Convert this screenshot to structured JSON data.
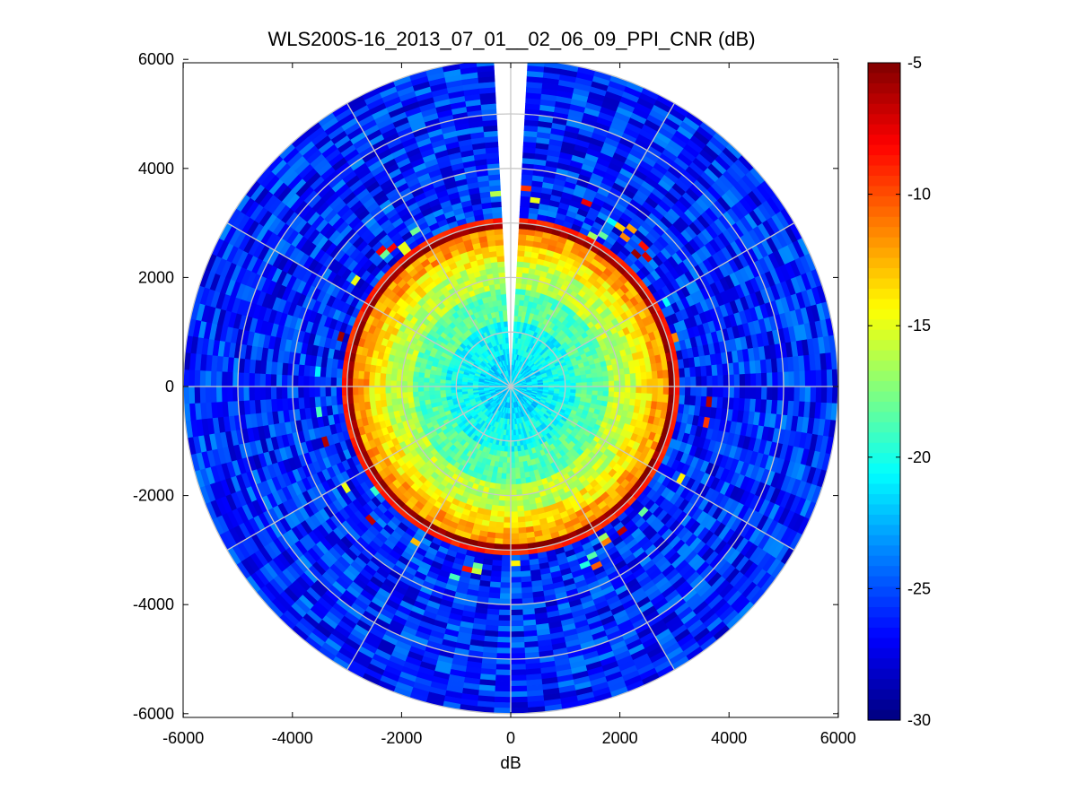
{
  "chart_data": {
    "type": "heatmap",
    "subtype": "polar PPI scan",
    "title": "WLS200S-16_2013_07_01__02_06_09_PPI_CNR (dB)",
    "xlabel": "dB",
    "ylabel": "",
    "xlim": [
      -6000,
      6000
    ],
    "ylim": [
      -6000,
      6000
    ],
    "x_ticks": [
      "-6000",
      "-4000",
      "-2000",
      "0",
      "2000",
      "4000",
      "6000"
    ],
    "y_ticks": [
      "6000",
      "4000",
      "2000",
      "0",
      "-2000",
      "-4000",
      "-6000"
    ],
    "grid": true,
    "polar_grid": {
      "ring_radii": [
        1000,
        2000,
        3000,
        4000,
        5000,
        6000
      ],
      "spoke_angles_deg": [
        0,
        30,
        60,
        90,
        120,
        150,
        180,
        210,
        240,
        270,
        300,
        330
      ]
    },
    "max_range": 6000,
    "missing_sector_azimuth_deg": [
      356,
      4
    ],
    "colorbar": {
      "colormap": "jet",
      "clim": [
        -30,
        -5
      ],
      "ticks": [
        "-5",
        "-10",
        "-15",
        "-20",
        "-25",
        "-30"
      ]
    },
    "range_profile": [
      {
        "r_min": 0,
        "r_max": 600,
        "cnr": -21.5
      },
      {
        "r_min": 600,
        "r_max": 1200,
        "cnr": -20.5
      },
      {
        "r_min": 1200,
        "r_max": 1800,
        "cnr": -18.5
      },
      {
        "r_min": 1800,
        "r_max": 2300,
        "cnr": -16
      },
      {
        "r_min": 2300,
        "r_max": 2650,
        "cnr": -14
      },
      {
        "r_min": 2650,
        "r_max": 2900,
        "cnr": -12
      },
      {
        "r_min": 2900,
        "r_max": 3000,
        "cnr": -5.5
      },
      {
        "r_min": 3000,
        "r_max": 3100,
        "cnr": -9
      },
      {
        "r_min": 3100,
        "r_max": 6000,
        "cnr": -26
      }
    ]
  }
}
